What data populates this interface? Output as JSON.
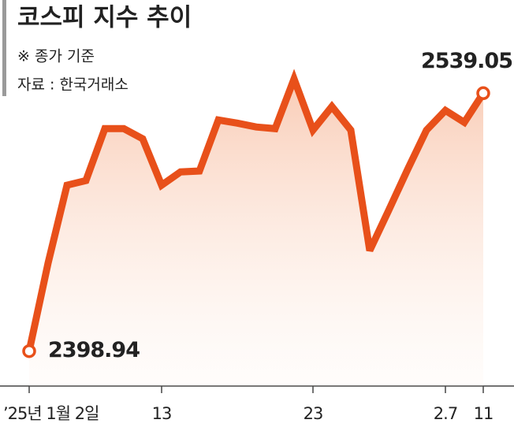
{
  "chart_data": {
    "type": "line",
    "title": "코스피 지수 추이",
    "subtitle": "※ 종가 기준",
    "source": "자료 : 한국거래소",
    "categories": [
      "’25년 1월 2일",
      null,
      null,
      null,
      null,
      null,
      null,
      "13",
      null,
      null,
      null,
      null,
      null,
      null,
      null,
      "23",
      null,
      null,
      null,
      null,
      null,
      null,
      "2.7",
      null,
      "11"
    ],
    "series": [
      {
        "color": "#e8501a",
        "values": [
          2398.94,
          2446.8,
          2489.1,
          2491.6,
          2519.8,
          2519.8,
          2514.3,
          2489.1,
          2496.3,
          2496.8,
          2524.5,
          2522.8,
          2520.7,
          2519.8,
          2546.8,
          2519.0,
          2531.8,
          2519.0,
          2453.6,
          2475.4,
          2497.6,
          2519.0,
          2529.7,
          2523.2,
          2539.05
        ]
      }
    ],
    "ylim": [
      2380,
      2564
    ]
  }
}
